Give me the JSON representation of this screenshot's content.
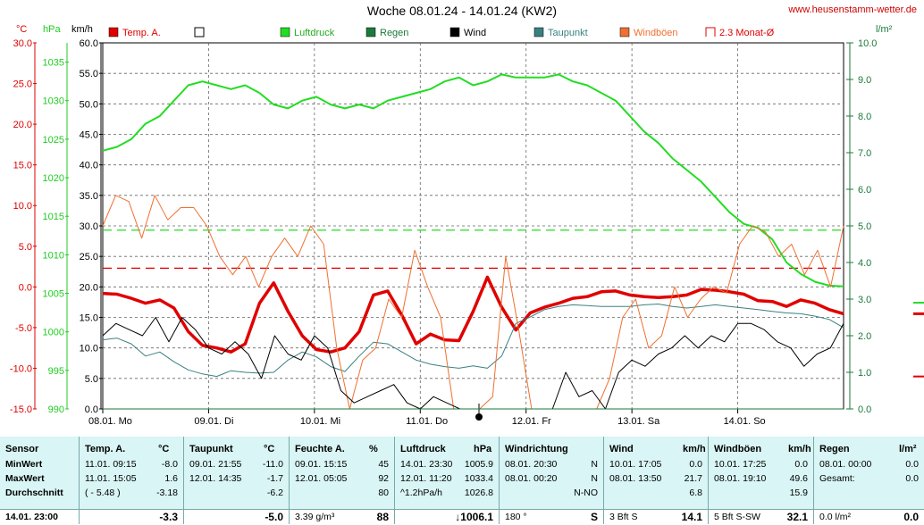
{
  "header": {
    "title": "Woche 08.01.24 - 14.01.24 (KW2)",
    "site": "www.heusenstamm-wetter.de"
  },
  "chart_data": {
    "type": "line",
    "axes": {
      "temp": {
        "unit": "°C",
        "ticks": [
          "30.0",
          "25.0",
          "20.0",
          "15.0",
          "10.0",
          "5.0",
          "0.0",
          "-5.0",
          "-10.0",
          "-15.0"
        ],
        "range": [
          -15,
          30
        ]
      },
      "pressure": {
        "unit": "hPa",
        "ticks": [
          "1035",
          "1030",
          "1025",
          "1020",
          "1015",
          "1010",
          "1005",
          "1000",
          "995",
          "990"
        ],
        "range": [
          990,
          1037.5
        ]
      },
      "wind": {
        "unit": "km/h",
        "ticks": [
          "60.0",
          "55.0",
          "50.0",
          "45.0",
          "40.0",
          "35.0",
          "30.0",
          "25.0",
          "20.0",
          "15.0",
          "10.0",
          "5.0",
          "0.0"
        ],
        "range": [
          0,
          60
        ]
      },
      "rain": {
        "unit": "l/m²",
        "ticks": [
          "10.0",
          "9.0",
          "8.0",
          "7.0",
          "6.0",
          "5.0",
          "4.0",
          "3.0",
          "2.0",
          "1.0",
          "0.0"
        ],
        "range": [
          0,
          10
        ]
      }
    },
    "x_labels": [
      "08.01. Mo",
      "09.01. Di",
      "10.01. Mi",
      "11.01. Do",
      "12.01. Fr",
      "13.01. Sa",
      "14.01. So"
    ],
    "legend": [
      {
        "name": "Temp. A.",
        "color": "#e00000",
        "marker": "filled"
      },
      {
        "name": "",
        "color": "#ffffff",
        "marker": "empty"
      },
      {
        "name": "Luftdruck",
        "color": "#22dd22",
        "marker": "filled"
      },
      {
        "name": "Regen",
        "color": "#1b7a3a",
        "marker": "filled"
      },
      {
        "name": "Wind",
        "color": "#000000",
        "marker": "filled"
      },
      {
        "name": "Taupunkt",
        "color": "#3a8080",
        "marker": "filled"
      },
      {
        "name": "Windböen",
        "color": "#f07030",
        "marker": "filled"
      },
      {
        "name": "2.3 Monat-Ø",
        "color": "#e00000",
        "marker": "bracket"
      }
    ],
    "reference_lines": [
      {
        "axis": "pressure",
        "value": 1013.2,
        "color": "#22dd22"
      },
      {
        "axis": "temp",
        "value": 2.3,
        "color": "#e00000"
      }
    ],
    "series": [
      {
        "key": "temp",
        "axis": "temp",
        "color": "#e00000",
        "width": 3.5,
        "values": [
          -0.8,
          -0.9,
          -1.4,
          -2.0,
          -1.6,
          -2.6,
          -5.5,
          -7.2,
          -7.5,
          -8.0,
          -7.0,
          -2.0,
          0.5,
          -3.0,
          -6.0,
          -7.7,
          -8.0,
          -7.5,
          -5.5,
          -1.0,
          -0.5,
          -3.5,
          -7.0,
          -5.8,
          -6.5,
          -6.6,
          -3.0,
          1.2,
          -2.5,
          -5.3,
          -3.2,
          -2.5,
          -2.0,
          -1.4,
          -1.2,
          -0.6,
          -0.5,
          -1.0,
          -1.2,
          -1.3,
          -1.2,
          -1.0,
          -0.3,
          -0.4,
          -0.6,
          -0.9,
          -1.7,
          -1.8,
          -2.4,
          -1.6,
          -2.0,
          -2.8,
          -3.3
        ]
      },
      {
        "key": "dewpoint",
        "axis": "temp",
        "color": "#3a8080",
        "width": 1,
        "values": [
          -6.5,
          -6.3,
          -7.0,
          -8.5,
          -8.0,
          -9.2,
          -10.2,
          -10.7,
          -11.0,
          -10.3,
          -10.5,
          -10.6,
          -10.5,
          -9.0,
          -8.0,
          -8.6,
          -9.8,
          -10.4,
          -8.5,
          -6.8,
          -7.0,
          -8.0,
          -9.0,
          -9.5,
          -9.8,
          -10.0,
          -9.7,
          -10.0,
          -8.5,
          -4.5,
          -3.7,
          -2.8,
          -2.4,
          -2.2,
          -2.3,
          -2.4,
          -2.4,
          -2.4,
          -2.2,
          -2.1,
          -2.4,
          -2.6,
          -2.4,
          -2.2,
          -2.4,
          -2.6,
          -2.8,
          -3.0,
          -3.2,
          -3.3,
          -3.6,
          -4.0,
          -5.0
        ]
      },
      {
        "key": "pressure",
        "axis": "pressure",
        "color": "#22dd22",
        "width": 2,
        "values": [
          1023.5,
          1024.0,
          1025.0,
          1027.0,
          1028.0,
          1030.0,
          1032.0,
          1032.5,
          1032.0,
          1031.5,
          1032.0,
          1031.0,
          1029.5,
          1029.0,
          1030.0,
          1030.5,
          1029.5,
          1029.0,
          1029.5,
          1029.0,
          1030.0,
          1030.5,
          1031.0,
          1031.5,
          1032.5,
          1033.0,
          1032.0,
          1032.5,
          1033.4,
          1033.0,
          1033.0,
          1033.0,
          1033.4,
          1032.5,
          1032.0,
          1031.0,
          1030.0,
          1028.0,
          1026.0,
          1024.5,
          1022.5,
          1021.0,
          1019.5,
          1017.5,
          1015.5,
          1014.0,
          1013.5,
          1012.0,
          1009.0,
          1007.5,
          1006.5,
          1006.0,
          1005.9
        ]
      },
      {
        "key": "gusts",
        "axis": "wind",
        "color": "#f07030",
        "width": 1,
        "values": [
          30,
          35,
          34,
          28,
          35,
          31,
          33,
          33,
          30,
          25,
          22,
          25,
          20,
          25,
          28,
          25,
          30,
          27,
          10,
          0,
          8,
          10,
          18,
          15,
          26,
          20,
          15,
          0,
          0,
          0,
          2,
          25,
          13,
          0,
          0,
          0,
          0,
          0,
          0,
          5,
          15,
          18,
          10,
          12,
          20,
          15,
          18,
          20,
          19,
          27,
          30,
          29,
          25,
          27,
          22,
          26,
          20,
          30
        ]
      },
      {
        "key": "wind",
        "axis": "wind",
        "color": "#000000",
        "width": 1,
        "values": [
          12,
          14,
          13,
          12,
          15,
          11,
          15,
          13,
          10,
          9,
          11,
          9,
          5,
          12,
          9,
          8,
          12,
          10,
          3,
          1,
          2,
          3,
          4,
          1,
          0,
          2,
          1,
          0,
          0,
          0,
          0,
          0,
          0,
          0,
          0,
          6,
          2,
          3,
          0,
          6,
          8,
          7,
          9,
          10,
          12,
          10,
          12,
          11,
          14,
          14,
          13,
          11,
          10,
          7,
          9,
          10,
          14
        ]
      },
      {
        "key": "rain",
        "axis": "rain",
        "color": "#1b7a3a",
        "width": 1,
        "values": [
          0,
          0,
          0,
          0,
          0,
          0,
          0,
          0,
          0,
          0,
          0,
          0,
          0,
          0,
          0,
          0,
          0,
          0,
          0,
          0,
          0,
          0,
          0,
          0,
          0,
          0,
          0,
          0,
          0,
          0,
          0,
          0,
          0,
          0,
          0,
          0,
          0,
          0,
          0,
          0,
          0,
          0,
          0,
          0,
          0,
          0,
          0,
          0,
          0,
          0,
          0,
          0,
          0
        ]
      }
    ]
  },
  "table": {
    "sensor": {
      "header": "Sensor",
      "rows": [
        "MinWert",
        "MaxWert",
        "Durchschnitt"
      ],
      "current": "14.01. 23:00"
    },
    "temp": {
      "header": "Temp. A.",
      "unit": "°C",
      "rows": [
        [
          "11.01.  09:15",
          "-8.0"
        ],
        [
          "11.01.  15:05",
          "1.6"
        ],
        [
          "( - 5.48 )",
          "-3.18"
        ]
      ],
      "current": "-3.3"
    },
    "dew": {
      "header": "Taupunkt",
      "unit": "°C",
      "rows": [
        [
          "09.01.  21:55",
          "-11.0"
        ],
        [
          "12.01.  14:35",
          "-1.7"
        ],
        [
          "",
          "-6.2"
        ]
      ],
      "current": "-5.0"
    },
    "hum": {
      "header": "Feuchte A.",
      "unit": "%",
      "rows": [
        [
          "09.01.  15:15",
          "45"
        ],
        [
          "12.01.  05:05",
          "92"
        ],
        [
          "",
          "80"
        ]
      ],
      "current_left": "3.39 g/m³",
      "current": "88"
    },
    "pres": {
      "header": "Luftdruck",
      "unit": "hPa",
      "rows": [
        [
          "14.01.  23:30",
          "1005.9"
        ],
        [
          "12.01.  11:20",
          "1033.4"
        ],
        [
          "^1.2hPa/h",
          "1026.8"
        ]
      ],
      "current": "↓1006.1"
    },
    "wdir": {
      "header": "Windrichtung",
      "rows": [
        [
          "08.01.  20:30",
          "N"
        ],
        [
          "08.01.  00:20",
          "N"
        ],
        [
          "",
          "N-NO"
        ]
      ],
      "current_left": "180 °",
      "current": "S"
    },
    "wind": {
      "header": "Wind",
      "unit": "km/h",
      "rows": [
        [
          "10.01.  17:05",
          "0.0"
        ],
        [
          "08.01.  13:50",
          "21.7"
        ],
        [
          "",
          "6.8"
        ]
      ],
      "current_left": "3 Bft S",
      "current": "14.1"
    },
    "gust": {
      "header": "Windböen",
      "unit": "km/h",
      "rows": [
        [
          "10.01.  17:25",
          "0.0"
        ],
        [
          "08.01.  19:10",
          "49.6"
        ],
        [
          "",
          "15.9"
        ]
      ],
      "current_left": "5 Bft S-SW",
      "current": "32.1"
    },
    "rain": {
      "header": "Regen",
      "unit": "l/m²",
      "rows": [
        [
          "08.01.  00:00",
          "0.0"
        ],
        [
          "Gesamt:",
          "0.0"
        ],
        [
          "",
          ""
        ]
      ],
      "current_left": "0.0 l/m²",
      "current": "0.0"
    }
  }
}
